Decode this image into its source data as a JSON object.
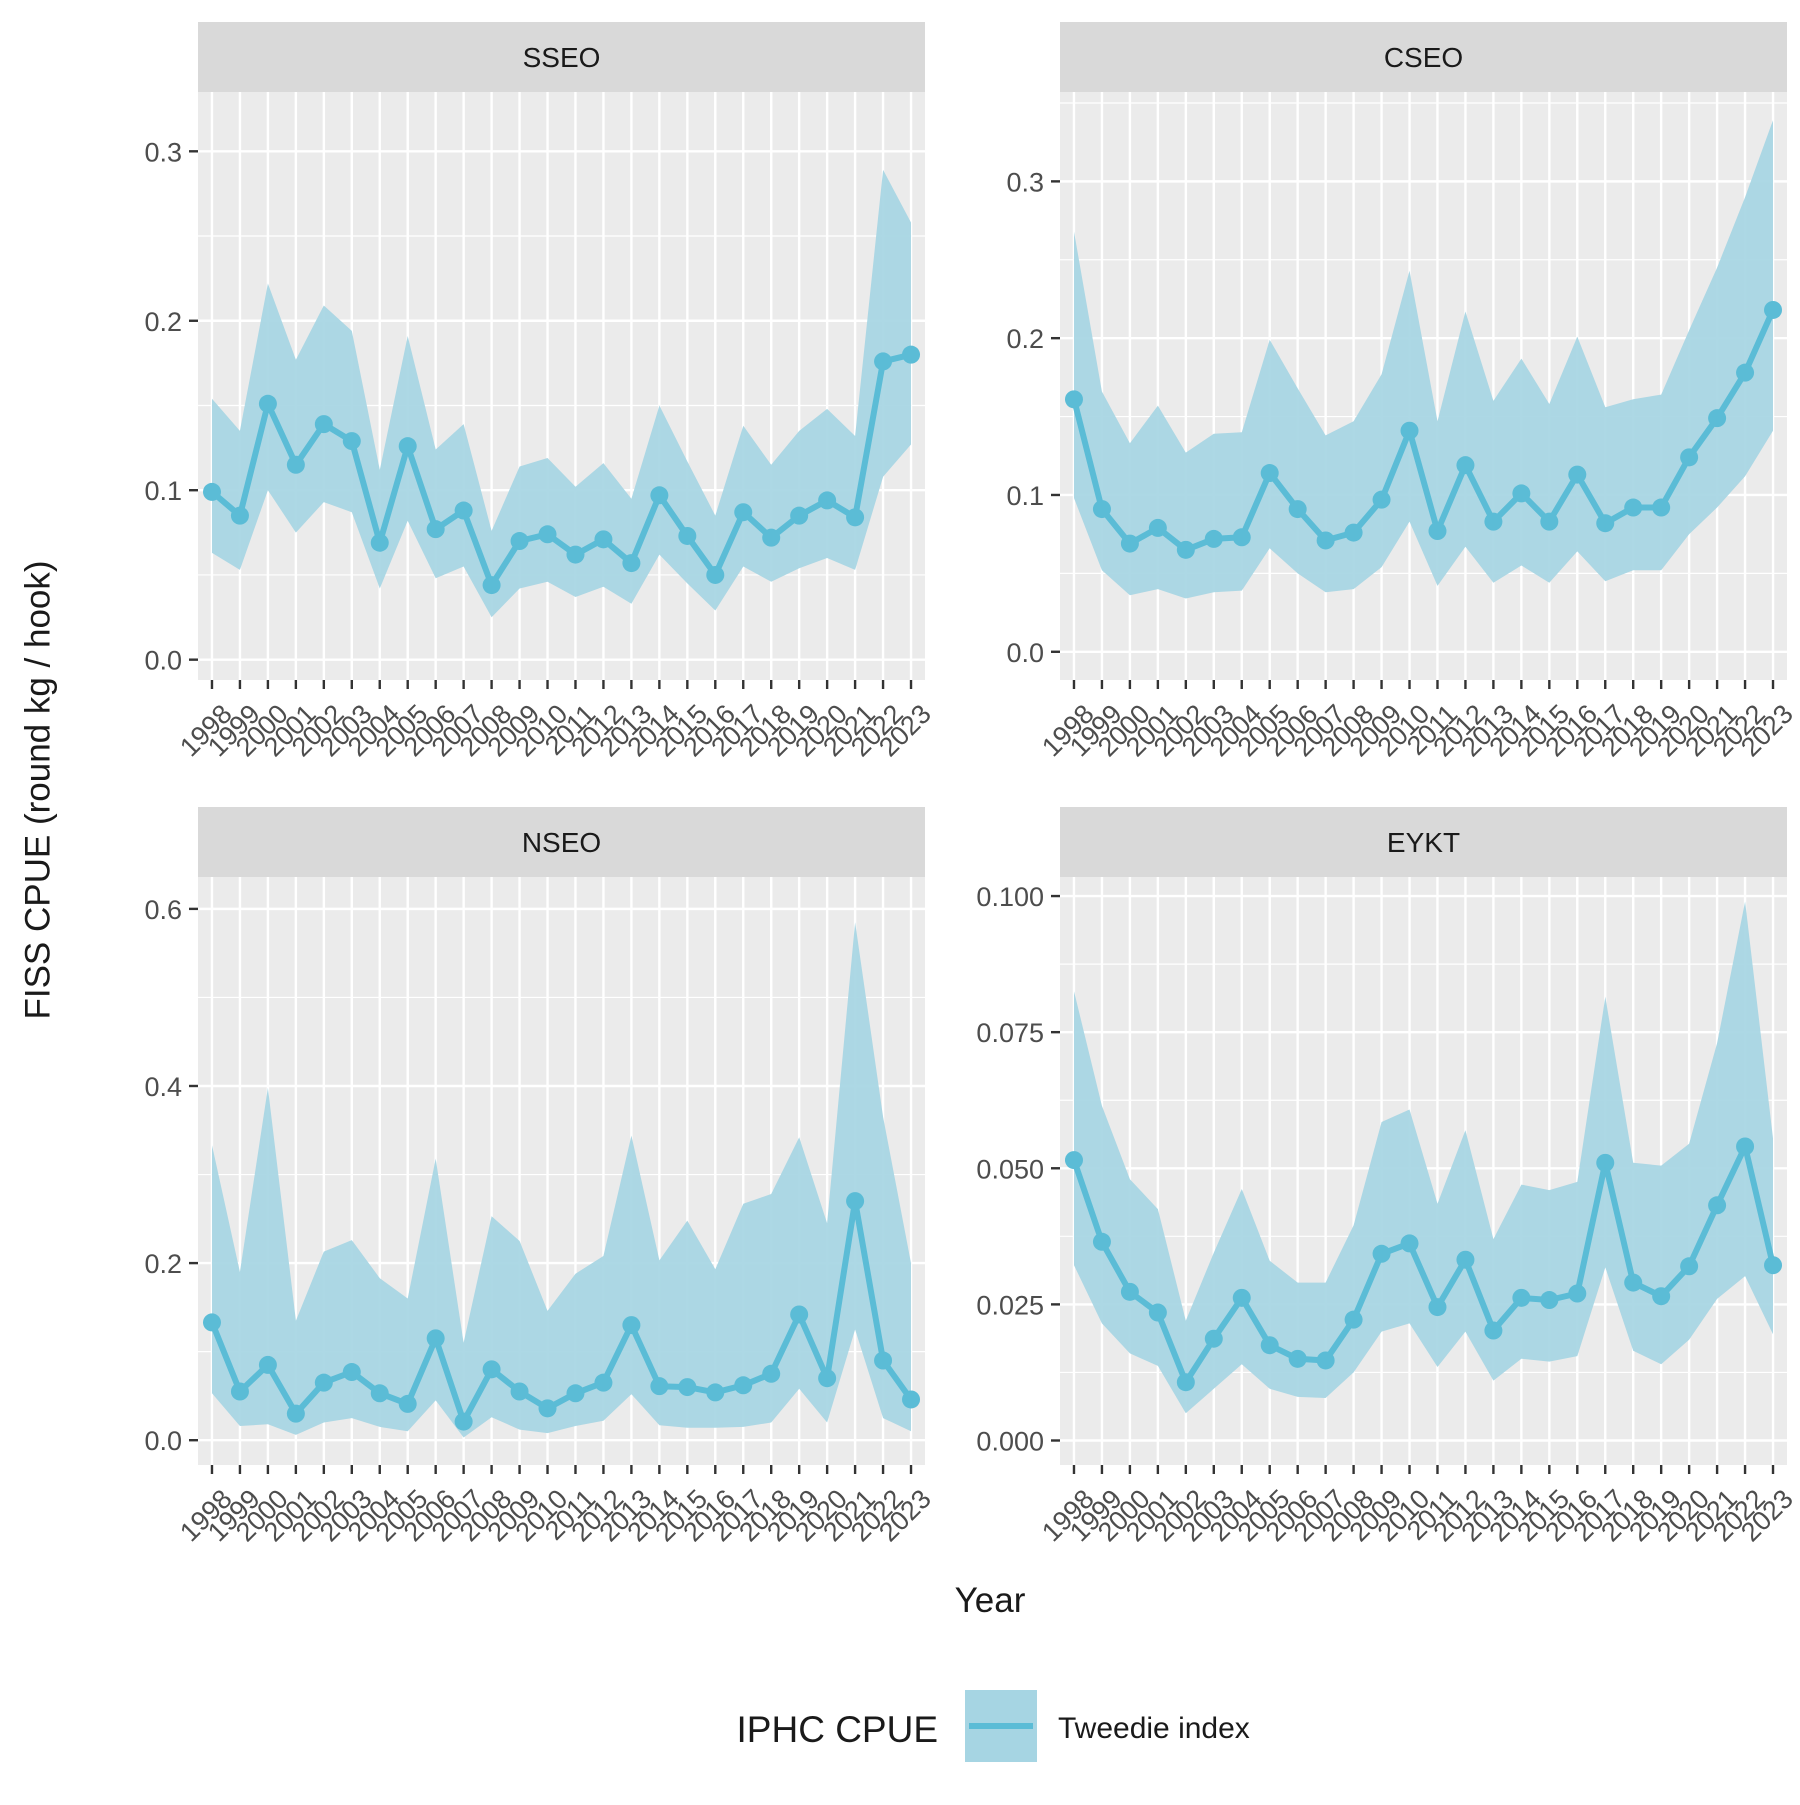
{
  "y_axis_label": "FISS CPUE (round kg / hook)",
  "x_axis_label": "Year",
  "legend": {
    "title": "IPHC CPUE",
    "entry": "Tweedie index"
  },
  "colors": {
    "line": "#5bbcd6",
    "ribbon": "#a6d5e3",
    "panel_bg": "#ebebeb",
    "strip_bg": "#d9d9d9",
    "grid": "#ffffff",
    "tick_label": "#4d4d4d",
    "text": "#1a1a1a"
  },
  "chart_data": [
    {
      "type": "line",
      "title": "SSEO",
      "x": [
        1998,
        1999,
        2000,
        2001,
        2002,
        2003,
        2004,
        2005,
        2006,
        2007,
        2008,
        2009,
        2010,
        2011,
        2012,
        2013,
        2014,
        2015,
        2016,
        2017,
        2018,
        2019,
        2020,
        2021,
        2022,
        2023
      ],
      "ylim": [
        -0.012,
        0.335
      ],
      "yticks": [
        0.0,
        0.1,
        0.2,
        0.3
      ],
      "ytick_labels": [
        "0.0",
        "0.1",
        "0.2",
        "0.3"
      ],
      "series": [
        {
          "values": [
            0.099,
            0.085,
            0.151,
            0.115,
            0.139,
            0.129,
            0.069,
            0.126,
            0.077,
            0.088,
            0.044,
            0.07,
            0.074,
            0.062,
            0.071,
            0.057,
            0.097,
            0.073,
            0.05,
            0.087,
            0.072,
            0.085,
            0.094,
            0.084,
            0.176,
            0.18
          ],
          "lower": [
            0.063,
            0.053,
            0.1,
            0.075,
            0.093,
            0.087,
            0.042,
            0.082,
            0.048,
            0.055,
            0.025,
            0.042,
            0.046,
            0.037,
            0.043,
            0.033,
            0.062,
            0.045,
            0.029,
            0.055,
            0.046,
            0.054,
            0.06,
            0.053,
            0.108,
            0.127
          ],
          "upper": [
            0.154,
            0.135,
            0.222,
            0.177,
            0.209,
            0.194,
            0.112,
            0.191,
            0.124,
            0.139,
            0.076,
            0.114,
            0.119,
            0.102,
            0.116,
            0.095,
            0.15,
            0.117,
            0.085,
            0.138,
            0.115,
            0.135,
            0.148,
            0.132,
            0.289,
            0.258
          ]
        }
      ]
    },
    {
      "type": "line",
      "title": "CSEO",
      "x": [
        1998,
        1999,
        2000,
        2001,
        2002,
        2003,
        2004,
        2005,
        2006,
        2007,
        2008,
        2009,
        2010,
        2011,
        2012,
        2013,
        2014,
        2015,
        2016,
        2017,
        2018,
        2019,
        2020,
        2021,
        2022,
        2023
      ],
      "ylim": [
        -0.018,
        0.357
      ],
      "yticks": [
        0.0,
        0.1,
        0.2,
        0.3
      ],
      "ytick_labels": [
        "0.0",
        "0.1",
        "0.2",
        "0.3"
      ],
      "series": [
        {
          "values": [
            0.161,
            0.091,
            0.069,
            0.079,
            0.065,
            0.072,
            0.073,
            0.114,
            0.091,
            0.071,
            0.076,
            0.097,
            0.141,
            0.077,
            0.119,
            0.083,
            0.101,
            0.083,
            0.113,
            0.082,
            0.092,
            0.092,
            0.124,
            0.149,
            0.178,
            0.218
          ],
          "lower": [
            0.098,
            0.052,
            0.036,
            0.04,
            0.034,
            0.038,
            0.039,
            0.066,
            0.05,
            0.038,
            0.04,
            0.054,
            0.083,
            0.042,
            0.067,
            0.044,
            0.055,
            0.044,
            0.064,
            0.045,
            0.052,
            0.052,
            0.075,
            0.092,
            0.112,
            0.141
          ],
          "upper": [
            0.268,
            0.166,
            0.133,
            0.157,
            0.127,
            0.139,
            0.14,
            0.199,
            0.168,
            0.138,
            0.147,
            0.177,
            0.243,
            0.147,
            0.217,
            0.16,
            0.187,
            0.158,
            0.201,
            0.156,
            0.161,
            0.164,
            0.205,
            0.245,
            0.29,
            0.339
          ]
        }
      ]
    },
    {
      "type": "line",
      "title": "NSEO",
      "x": [
        1998,
        1999,
        2000,
        2001,
        2002,
        2003,
        2004,
        2005,
        2006,
        2007,
        2008,
        2009,
        2010,
        2011,
        2012,
        2013,
        2014,
        2015,
        2016,
        2017,
        2018,
        2019,
        2020,
        2021,
        2022,
        2023
      ],
      "ylim": [
        -0.028,
        0.636
      ],
      "yticks": [
        0.0,
        0.2,
        0.4,
        0.6
      ],
      "ytick_labels": [
        "0.0",
        "0.2",
        "0.4",
        "0.6"
      ],
      "series": [
        {
          "values": [
            0.133,
            0.055,
            0.085,
            0.03,
            0.065,
            0.077,
            0.053,
            0.041,
            0.115,
            0.021,
            0.08,
            0.055,
            0.036,
            0.053,
            0.065,
            0.13,
            0.061,
            0.06,
            0.054,
            0.062,
            0.075,
            0.142,
            0.07,
            0.27,
            0.09,
            0.046
          ],
          "lower": [
            0.053,
            0.016,
            0.018,
            0.006,
            0.02,
            0.025,
            0.015,
            0.01,
            0.045,
            0.003,
            0.026,
            0.012,
            0.008,
            0.016,
            0.022,
            0.052,
            0.017,
            0.014,
            0.014,
            0.015,
            0.02,
            0.058,
            0.02,
            0.125,
            0.025,
            0.01
          ],
          "upper": [
            0.333,
            0.19,
            0.398,
            0.135,
            0.213,
            0.226,
            0.183,
            0.16,
            0.318,
            0.11,
            0.253,
            0.225,
            0.146,
            0.188,
            0.208,
            0.344,
            0.203,
            0.248,
            0.193,
            0.267,
            0.278,
            0.342,
            0.245,
            0.585,
            0.365,
            0.2
          ]
        }
      ]
    },
    {
      "type": "line",
      "title": "EYKT",
      "x": [
        1998,
        1999,
        2000,
        2001,
        2002,
        2003,
        2004,
        2005,
        2006,
        2007,
        2008,
        2009,
        2010,
        2011,
        2012,
        2013,
        2014,
        2015,
        2016,
        2017,
        2018,
        2019,
        2020,
        2021,
        2022,
        2023
      ],
      "ylim": [
        -0.0045,
        0.1035
      ],
      "yticks": [
        0.0,
        0.025,
        0.05,
        0.075,
        0.1
      ],
      "ytick_labels": [
        "0.000",
        "0.025",
        "0.050",
        "0.075",
        "0.100"
      ],
      "series": [
        {
          "values": [
            0.0515,
            0.0365,
            0.0273,
            0.0235,
            0.0107,
            0.0187,
            0.0262,
            0.0175,
            0.015,
            0.0147,
            0.0222,
            0.0343,
            0.0362,
            0.0245,
            0.0332,
            0.0202,
            0.0262,
            0.0258,
            0.027,
            0.051,
            0.029,
            0.0265,
            0.032,
            0.0432,
            0.054,
            0.0322
          ],
          "lower": [
            0.0322,
            0.0215,
            0.016,
            0.0137,
            0.005,
            0.0095,
            0.014,
            0.0095,
            0.008,
            0.0078,
            0.0125,
            0.02,
            0.0215,
            0.0135,
            0.02,
            0.011,
            0.015,
            0.0145,
            0.0155,
            0.0318,
            0.0165,
            0.014,
            0.0185,
            0.026,
            0.0302,
            0.0195
          ],
          "upper": [
            0.0825,
            0.0615,
            0.048,
            0.0425,
            0.022,
            0.0345,
            0.0462,
            0.033,
            0.029,
            0.029,
            0.0395,
            0.0585,
            0.0608,
            0.0435,
            0.057,
            0.037,
            0.047,
            0.046,
            0.0475,
            0.0815,
            0.051,
            0.0505,
            0.0545,
            0.073,
            0.099,
            0.0555
          ]
        }
      ]
    }
  ]
}
